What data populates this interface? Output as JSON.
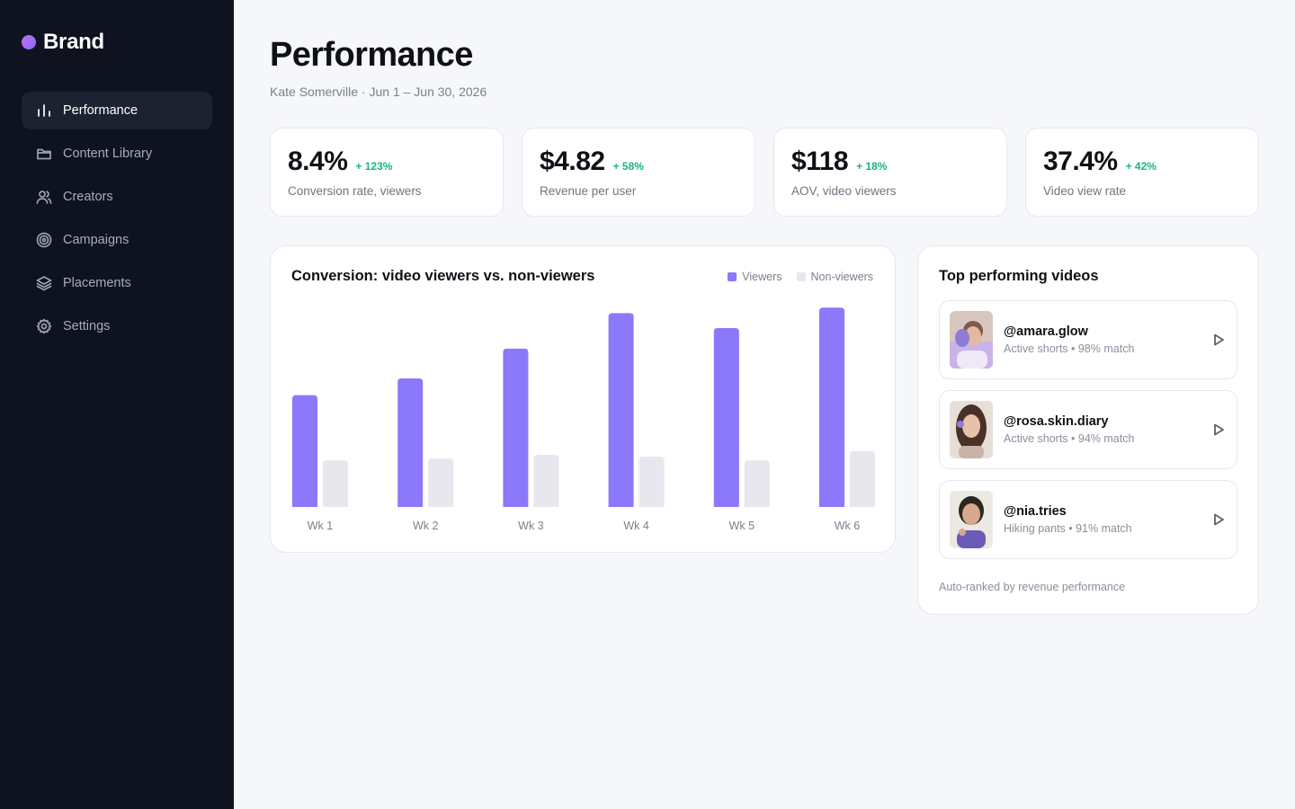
{
  "brand": {
    "name": "Brand"
  },
  "nav": [
    {
      "label": "Performance",
      "icon": "bar-chart-icon",
      "active": true
    },
    {
      "label": "Content Library",
      "icon": "folder-icon",
      "active": false
    },
    {
      "label": "Creators",
      "icon": "users-icon",
      "active": false
    },
    {
      "label": "Campaigns",
      "icon": "target-icon",
      "active": false
    },
    {
      "label": "Placements",
      "icon": "layers-icon",
      "active": false
    },
    {
      "label": "Settings",
      "icon": "gear-icon",
      "active": false
    }
  ],
  "header": {
    "title": "Performance",
    "subtitle": "Kate Somerville · Jun 1 – Jun 30, 2026"
  },
  "kpis": [
    {
      "value": "8.4%",
      "delta": "+ 123%",
      "label": "Conversion rate, viewers"
    },
    {
      "value": "$4.82",
      "delta": "+ 58%",
      "label": "Revenue per user"
    },
    {
      "value": "$118",
      "delta": "+ 18%",
      "label": "AOV, video viewers"
    },
    {
      "value": "37.4%",
      "delta": "+ 42%",
      "label": "Video view rate"
    }
  ],
  "colors": {
    "viewers": "#8b78fb",
    "non_viewers": "#e8e7ee",
    "positive_delta": "#16b779",
    "sidebar_bg": "#0f1320"
  },
  "chart_data": {
    "type": "bar",
    "title": "Conversion: video viewers vs. non-viewers",
    "categories": [
      "Wk 1",
      "Wk 2",
      "Wk 3",
      "Wk 4",
      "Wk 5",
      "Wk 6"
    ],
    "series": [
      {
        "name": "Viewers",
        "values": [
          6.0,
          6.9,
          8.5,
          10.4,
          9.6,
          10.7
        ]
      },
      {
        "name": "Non-viewers",
        "values": [
          2.5,
          2.6,
          2.8,
          2.7,
          2.5,
          3.0
        ]
      }
    ],
    "ylim": [
      0,
      11
    ],
    "grid": false,
    "legend_position": "top-right"
  },
  "videos": {
    "title": "Top performing videos",
    "items": [
      {
        "handle": "@amara.glow",
        "meta": "Active shorts • 98% match"
      },
      {
        "handle": "@rosa.skin.diary",
        "meta": "Active shorts • 94% match"
      },
      {
        "handle": "@nia.tries",
        "meta": "Hiking pants • 91% match"
      }
    ],
    "footer": "Auto-ranked by revenue performance"
  }
}
